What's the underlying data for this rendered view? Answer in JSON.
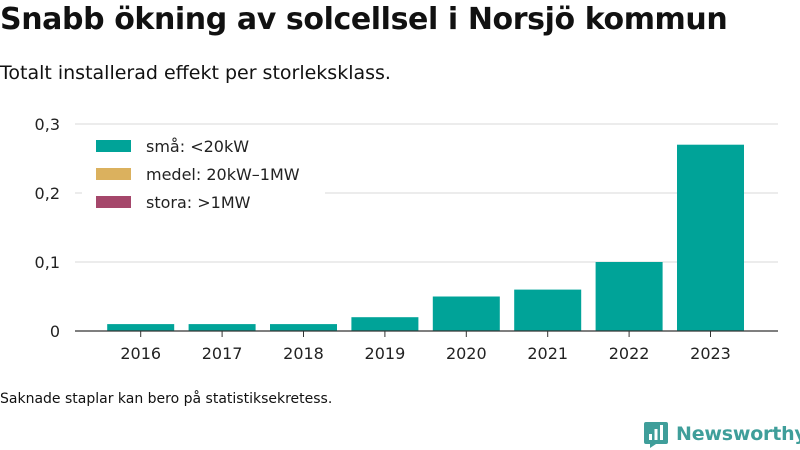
{
  "title": "Snabb ökning av solcellsel i Norsjö kommun",
  "subtitle": "Totalt installerad effekt per storleksklass.",
  "note": "Saknade staplar kan bero på statistiksekretess.",
  "brand": {
    "name": "Newsworthy",
    "color": "#3f9e9a"
  },
  "chart_data": {
    "type": "bar",
    "stacked": true,
    "categories": [
      "2016",
      "2017",
      "2018",
      "2019",
      "2020",
      "2021",
      "2022",
      "2023"
    ],
    "series": [
      {
        "name": "små: <20kW",
        "color": "#00a398",
        "values": [
          0.01,
          0.01,
          0.01,
          0.02,
          0.05,
          0.06,
          0.1,
          0.27
        ]
      },
      {
        "name": "medel: 20kW–1MW",
        "color": "#dbb15e",
        "values": [
          0,
          0,
          0,
          0,
          0,
          0,
          0,
          0
        ]
      },
      {
        "name": "stora: >1MW",
        "color": "#a5476b",
        "values": [
          0,
          0,
          0,
          0,
          0,
          0,
          0,
          0
        ]
      }
    ],
    "yticks": [
      0,
      0.1,
      0.2,
      0.3
    ],
    "ytick_labels": [
      "0",
      "0,1",
      "0,2",
      "0,3"
    ],
    "ylim": [
      0,
      0.3
    ],
    "grid": true,
    "legend_position": "top-left"
  }
}
